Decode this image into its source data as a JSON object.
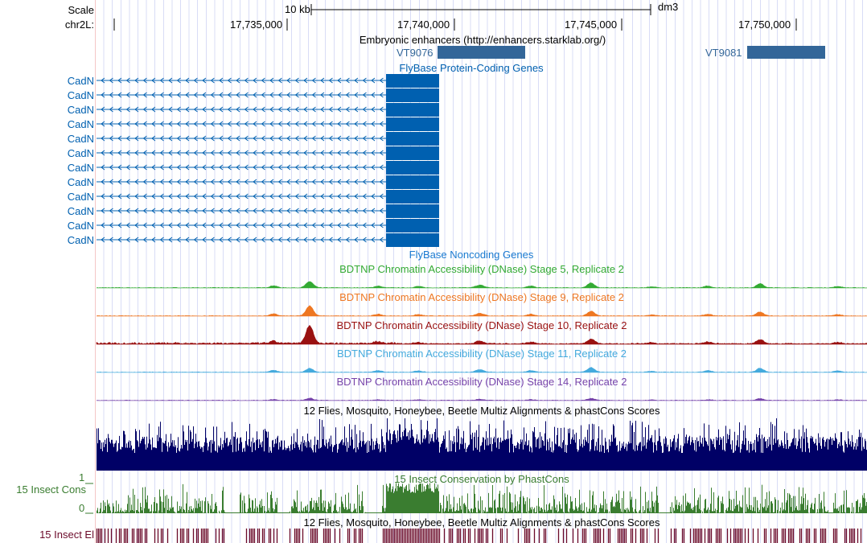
{
  "ruler": {
    "scale_label": "Scale",
    "scale_bar": "10 kb",
    "assembly": "dm3",
    "chrom_label": "chr2L:",
    "ticks": [
      "17,735,000",
      "17,740,000",
      "17,745,000",
      "17,750,000"
    ]
  },
  "tracks": {
    "enhancers": {
      "title": "Embryonic enhancers (http://enhancers.starklab.org/)",
      "items": [
        "VT9076",
        "VT9081"
      ],
      "color": "#336699"
    },
    "protein_genes": {
      "title": "FlyBase Protein-Coding Genes",
      "gene": "CadN",
      "count": 12,
      "color": "#0060b0"
    },
    "noncoding": {
      "title": "FlyBase Noncoding Genes"
    },
    "dnase": [
      {
        "title": "BDTNP Chromatin Accessibility (DNase) Stage 5, Replicate 2",
        "color": "#33aa33"
      },
      {
        "title": "BDTNP Chromatin Accessibility (DNase) Stage 9, Replicate 2",
        "color": "#ee7722"
      },
      {
        "title": "BDTNP Chromatin Accessibility (DNase) Stage 10, Replicate 2",
        "color": "#991111"
      },
      {
        "title": "BDTNP Chromatin Accessibility (DNase) Stage 11, Replicate 2",
        "color": "#44aadd"
      },
      {
        "title": "BDTNP Chromatin Accessibility (DNase) Stage 14, Replicate 2",
        "color": "#7744aa"
      }
    ],
    "multiz": {
      "title": "12 Flies, Mosquito, Honeybee, Beetle Multiz Alignments & phastCons Scores",
      "color": "#000066"
    },
    "cons": {
      "title": "15 Insect Conservation by PhastCons",
      "label": "15 Insect Cons",
      "ymax": "1",
      "ymin": "0",
      "color": "#3a7d30"
    },
    "elements": {
      "title": "12 Flies, Mosquito, Honeybee, Beetle Multiz Alignments & phastCons Scores",
      "label": "15 Insect El",
      "color": "#6b0a2a"
    }
  }
}
